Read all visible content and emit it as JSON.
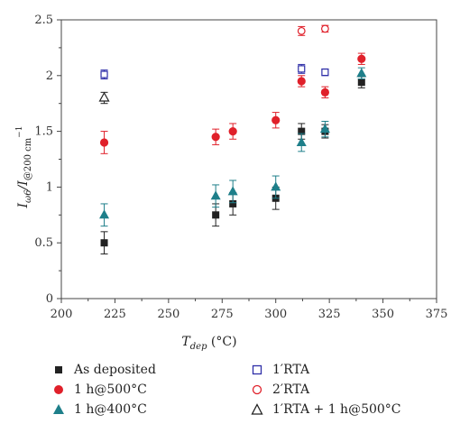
{
  "chart_data": {
    "type": "scatter",
    "xlabel_main": "T",
    "xlabel_sub": "dep",
    "xlabel_unit": " (°C)",
    "ylabel_main": "I",
    "ylabel_sub1": "ω6",
    "ylabel_sep": "/I",
    "ylabel_sub2": "@200 cm",
    "ylabel_sup": "−1",
    "xlim": [
      200,
      375
    ],
    "ylim": [
      0,
      2.5
    ],
    "xticks": [
      "200",
      "225",
      "250",
      "275",
      "300",
      "325",
      "350",
      "375"
    ],
    "xtick_values": [
      200,
      225,
      250,
      275,
      300,
      325,
      350,
      375
    ],
    "yticks": [
      "0",
      "0.5",
      "1",
      "1.5",
      "2",
      "2.5"
    ],
    "ytick_values": [
      0,
      0.5,
      1,
      1.5,
      2,
      2.5
    ],
    "series": [
      {
        "name": "As deposited",
        "marker": "square-filled",
        "color": "#222222",
        "points": [
          {
            "x": 220,
            "y": 0.5,
            "err": 0.1
          },
          {
            "x": 272,
            "y": 0.75,
            "err": 0.1
          },
          {
            "x": 280,
            "y": 0.85,
            "err": 0.1
          },
          {
            "x": 300,
            "y": 0.9,
            "err": 0.1
          },
          {
            "x": 312,
            "y": 1.5,
            "err": 0.07
          },
          {
            "x": 323,
            "y": 1.5,
            "err": 0.06
          },
          {
            "x": 340,
            "y": 1.94,
            "err": 0.05
          }
        ]
      },
      {
        "name": "1 h@500°C",
        "marker": "circle-filled",
        "color": "#e0202a",
        "points": [
          {
            "x": 220,
            "y": 1.4,
            "err": 0.1
          },
          {
            "x": 272,
            "y": 1.45,
            "err": 0.07
          },
          {
            "x": 280,
            "y": 1.5,
            "err": 0.07
          },
          {
            "x": 300,
            "y": 1.6,
            "err": 0.07
          },
          {
            "x": 312,
            "y": 1.95,
            "err": 0.05
          },
          {
            "x": 323,
            "y": 1.85,
            "err": 0.05
          },
          {
            "x": 340,
            "y": 2.15,
            "err": 0.05
          }
        ]
      },
      {
        "name": "1 h@400°C",
        "marker": "triangle-filled",
        "color": "#1e7f8a",
        "points": [
          {
            "x": 220,
            "y": 0.75,
            "err": 0.1
          },
          {
            "x": 272,
            "y": 0.92,
            "err": 0.1
          },
          {
            "x": 280,
            "y": 0.96,
            "err": 0.1
          },
          {
            "x": 300,
            "y": 1.0,
            "err": 0.1
          },
          {
            "x": 312,
            "y": 1.4,
            "err": 0.08
          },
          {
            "x": 323,
            "y": 1.52,
            "err": 0.07
          },
          {
            "x": 340,
            "y": 2.02,
            "err": 0.05
          }
        ]
      },
      {
        "name": "1′RTA",
        "marker": "square-open",
        "color": "#2f2fa8",
        "points": [
          {
            "x": 220,
            "y": 2.01,
            "err": 0.04
          },
          {
            "x": 312,
            "y": 2.06,
            "err": 0.04
          },
          {
            "x": 323,
            "y": 2.03,
            "err": 0.03
          }
        ]
      },
      {
        "name": "2′RTA",
        "marker": "circle-open",
        "color": "#e0202a",
        "points": [
          {
            "x": 312,
            "y": 2.4,
            "err": 0.04
          },
          {
            "x": 323,
            "y": 2.42,
            "err": 0.03
          }
        ]
      },
      {
        "name": "1′RTA + 1 h@500°C",
        "marker": "triangle-open",
        "color": "#222222",
        "points": [
          {
            "x": 220,
            "y": 1.8,
            "err": 0.05
          }
        ]
      }
    ],
    "legend_position": "bottom"
  }
}
